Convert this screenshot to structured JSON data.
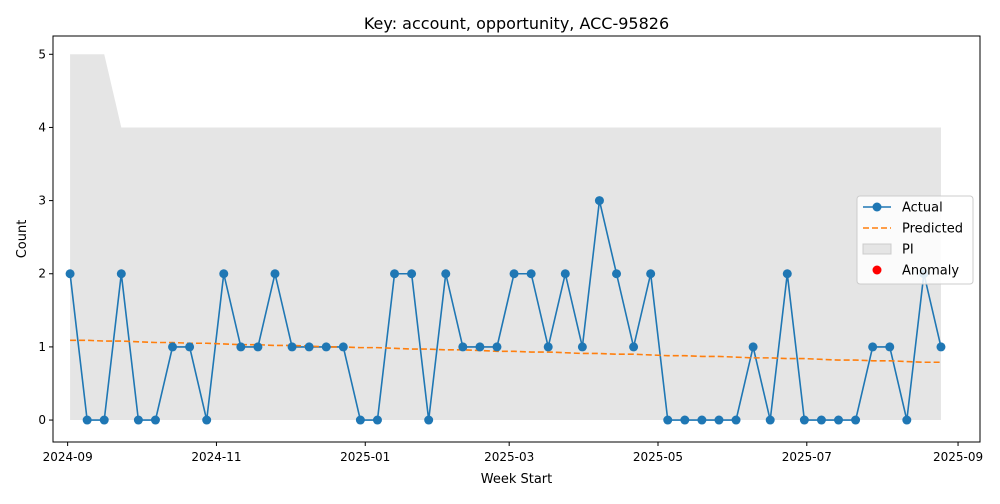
{
  "chart_data": {
    "type": "line",
    "title": "Key: account, opportunity, ACC-95826",
    "xlabel": "Week Start",
    "ylabel": "Count",
    "ylim": [
      -0.3,
      5.25
    ],
    "xlim": [
      "2024-08-18",
      "2024-09-11"
    ],
    "grid": false,
    "legend_position": "center-right",
    "x": [
      "2024-09-02",
      "2024-09-09",
      "2024-09-16",
      "2024-09-23",
      "2024-09-30",
      "2024-10-07",
      "2024-10-14",
      "2024-10-21",
      "2024-10-28",
      "2024-11-04",
      "2024-11-11",
      "2024-11-18",
      "2024-11-25",
      "2024-12-02",
      "2024-12-09",
      "2024-12-16",
      "2024-12-23",
      "2024-12-30",
      "2025-01-06",
      "2025-01-13",
      "2025-01-20",
      "2025-01-27",
      "2025-02-03",
      "2025-02-10",
      "2025-02-17",
      "2025-02-24",
      "2025-03-03",
      "2025-03-10",
      "2025-03-17",
      "2025-03-24",
      "2025-03-31",
      "2025-04-07",
      "2025-04-14",
      "2025-04-21",
      "2025-04-28",
      "2025-05-05",
      "2025-05-12",
      "2025-05-19",
      "2025-05-26",
      "2025-06-02",
      "2025-06-09",
      "2025-06-16",
      "2025-06-23",
      "2025-06-30",
      "2025-07-07",
      "2025-07-14",
      "2025-07-21",
      "2025-07-28",
      "2025-08-04",
      "2025-08-11",
      "2025-08-18",
      "2025-08-25"
    ],
    "series": [
      {
        "name": "Actual",
        "style": "line-markers",
        "color": "#1f77b4",
        "values": [
          2,
          0,
          0,
          2,
          0,
          0,
          1,
          1,
          0,
          2,
          1,
          1,
          2,
          1,
          1,
          1,
          1,
          0,
          0,
          2,
          2,
          0,
          2,
          1,
          1,
          1,
          2,
          2,
          1,
          2,
          1,
          3,
          2,
          1,
          2,
          0,
          0,
          0,
          0,
          0,
          1,
          0,
          2,
          0,
          0,
          0,
          0,
          1,
          1,
          0,
          2,
          1
        ]
      },
      {
        "name": "Predicted",
        "style": "dashed",
        "color": "#ff7f0e",
        "values": [
          1.09,
          1.09,
          1.08,
          1.08,
          1.07,
          1.06,
          1.06,
          1.05,
          1.05,
          1.04,
          1.03,
          1.03,
          1.02,
          1.02,
          1.01,
          1.0,
          1.0,
          0.99,
          0.99,
          0.98,
          0.97,
          0.97,
          0.96,
          0.96,
          0.95,
          0.94,
          0.94,
          0.93,
          0.93,
          0.92,
          0.91,
          0.91,
          0.9,
          0.9,
          0.89,
          0.88,
          0.88,
          0.87,
          0.87,
          0.86,
          0.85,
          0.85,
          0.84,
          0.84,
          0.83,
          0.82,
          0.82,
          0.81,
          0.81,
          0.8,
          0.79,
          0.79
        ]
      },
      {
        "name": "PI",
        "style": "band",
        "color": "#e5e5e5",
        "lower": [
          0,
          0,
          0,
          0,
          0,
          0,
          0,
          0,
          0,
          0,
          0,
          0,
          0,
          0,
          0,
          0,
          0,
          0,
          0,
          0,
          0,
          0,
          0,
          0,
          0,
          0,
          0,
          0,
          0,
          0,
          0,
          0,
          0,
          0,
          0,
          0,
          0,
          0,
          0,
          0,
          0,
          0,
          0,
          0,
          0,
          0,
          0,
          0,
          0,
          0,
          0,
          0
        ],
        "upper": [
          5,
          5,
          5,
          4,
          4,
          4,
          4,
          4,
          4,
          4,
          4,
          4,
          4,
          4,
          4,
          4,
          4,
          4,
          4,
          4,
          4,
          4,
          4,
          4,
          4,
          4,
          4,
          4,
          4,
          4,
          4,
          4,
          4,
          4,
          4,
          4,
          4,
          4,
          4,
          4,
          4,
          4,
          4,
          4,
          4,
          4,
          4,
          4,
          4,
          4,
          4,
          4
        ]
      },
      {
        "name": "Anomaly",
        "style": "scatter",
        "color": "#ff0000",
        "x": [],
        "values": []
      }
    ],
    "xticks": [
      {
        "date": "2024-09-01",
        "label": "2024-09"
      },
      {
        "date": "2024-11-01",
        "label": "2024-11"
      },
      {
        "date": "2025-01-01",
        "label": "2025-01"
      },
      {
        "date": "2025-03-01",
        "label": "2025-03"
      },
      {
        "date": "2025-05-01",
        "label": "2025-05"
      },
      {
        "date": "2025-07-01",
        "label": "2025-07"
      },
      {
        "date": "2025-09-01",
        "label": "2025-09"
      }
    ],
    "yticks": [
      0,
      1,
      2,
      3,
      4,
      5
    ]
  }
}
